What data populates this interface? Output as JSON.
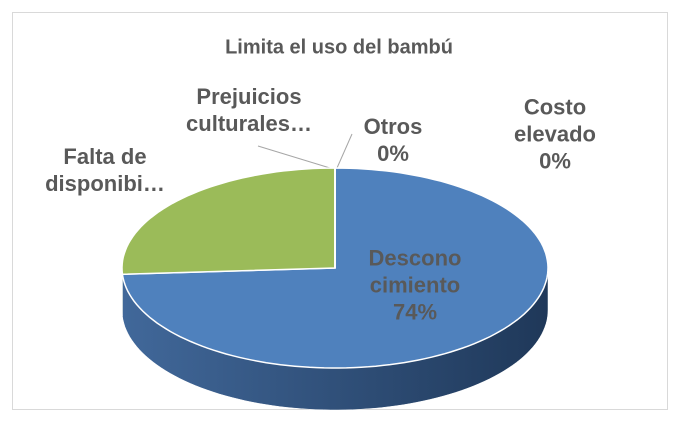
{
  "chart_data": {
    "type": "pie3d",
    "title": "Limita el uso del bambú",
    "categories": [
      "Descono cimiento",
      "Falta de disponibi…",
      "Prejuicios culturales…",
      "Otros",
      "Costo elevado"
    ],
    "values": [
      74,
      26,
      0,
      0,
      0
    ],
    "value_labels": [
      "74%",
      null,
      null,
      "0%",
      "0%"
    ],
    "colors": [
      "#4f81bd",
      "#9bbb59",
      "#8064a2",
      "#4bacc6",
      "#f79646"
    ]
  }
}
